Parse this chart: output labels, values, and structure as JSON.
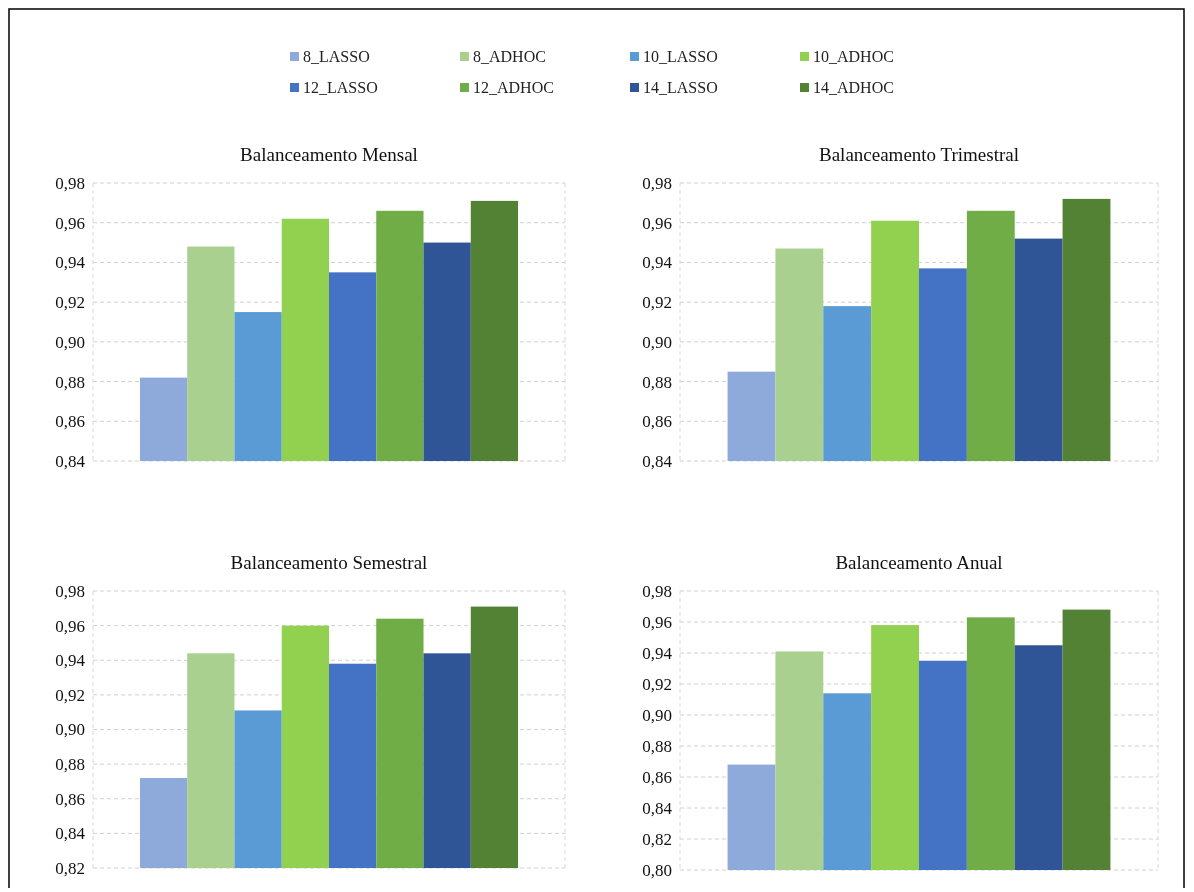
{
  "chart_data": [
    {
      "type": "bar",
      "title": "Balanceamento Mensal",
      "categories": [
        null
      ],
      "legend": "top",
      "grid": "y",
      "ylim": [
        0.84,
        0.98
      ],
      "yticks": [
        {
          "value": 0.84,
          "label": "0,84"
        },
        {
          "value": 0.86,
          "label": "0,86"
        },
        {
          "value": 0.88,
          "label": "0,88"
        },
        {
          "value": 0.9,
          "label": "0,90"
        },
        {
          "value": 0.92,
          "label": "0,92"
        },
        {
          "value": 0.94,
          "label": "0,94"
        },
        {
          "value": 0.96,
          "label": "0,96"
        },
        {
          "value": 0.98,
          "label": "0,98"
        }
      ],
      "series": [
        {
          "name": "8_LASSO",
          "color": "#8eaadb",
          "values": [
            0.882
          ]
        },
        {
          "name": "8_ADHOC",
          "color": "#a9d08e",
          "values": [
            0.948
          ]
        },
        {
          "name": "10_LASSO",
          "color": "#5b9bd5",
          "values": [
            0.915
          ]
        },
        {
          "name": "10_ADHOC",
          "color": "#92d050",
          "values": [
            0.962
          ]
        },
        {
          "name": "12_LASSO",
          "color": "#4472c4",
          "values": [
            0.935
          ]
        },
        {
          "name": "12_ADHOC",
          "color": "#70ad47",
          "values": [
            0.966
          ]
        },
        {
          "name": "14_LASSO",
          "color": "#2f5597",
          "values": [
            0.95
          ]
        },
        {
          "name": "14_ADHOC",
          "color": "#548235",
          "values": [
            0.971
          ]
        }
      ]
    },
    {
      "type": "bar",
      "title": "Balanceamento Trimestral",
      "categories": [
        null
      ],
      "grid": "y",
      "ylim": [
        0.84,
        0.98
      ],
      "yticks": [
        {
          "value": 0.84,
          "label": "0,84"
        },
        {
          "value": 0.86,
          "label": "0,86"
        },
        {
          "value": 0.88,
          "label": "0,88"
        },
        {
          "value": 0.9,
          "label": "0,90"
        },
        {
          "value": 0.92,
          "label": "0,92"
        },
        {
          "value": 0.94,
          "label": "0,94"
        },
        {
          "value": 0.96,
          "label": "0,96"
        },
        {
          "value": 0.98,
          "label": "0,98"
        }
      ],
      "series": [
        {
          "color": "#8eaadb",
          "values": [
            0.885
          ]
        },
        {
          "color": "#a9d08e",
          "values": [
            0.947
          ]
        },
        {
          "color": "#5b9bd5",
          "values": [
            0.918
          ]
        },
        {
          "color": "#92d050",
          "values": [
            0.961
          ]
        },
        {
          "color": "#4472c4",
          "values": [
            0.937
          ]
        },
        {
          "color": "#70ad47",
          "values": [
            0.966
          ]
        },
        {
          "color": "#2f5597",
          "values": [
            0.952
          ]
        },
        {
          "color": "#548235",
          "values": [
            0.972
          ]
        }
      ]
    },
    {
      "type": "bar",
      "title": "Balanceamento Semestral",
      "categories": [
        null
      ],
      "grid": "y",
      "ylim": [
        0.82,
        0.98
      ],
      "yticks": [
        {
          "value": 0.82,
          "label": "0,82"
        },
        {
          "value": 0.84,
          "label": "0,84"
        },
        {
          "value": 0.86,
          "label": "0,86"
        },
        {
          "value": 0.88,
          "label": "0,88"
        },
        {
          "value": 0.9,
          "label": "0,90"
        },
        {
          "value": 0.92,
          "label": "0,92"
        },
        {
          "value": 0.94,
          "label": "0,94"
        },
        {
          "value": 0.96,
          "label": "0,96"
        },
        {
          "value": 0.98,
          "label": "0,98"
        }
      ],
      "series": [
        {
          "color": "#8eaadb",
          "values": [
            0.872
          ]
        },
        {
          "color": "#a9d08e",
          "values": [
            0.944
          ]
        },
        {
          "color": "#5b9bd5",
          "values": [
            0.911
          ]
        },
        {
          "color": "#92d050",
          "values": [
            0.96
          ]
        },
        {
          "color": "#4472c4",
          "values": [
            0.938
          ]
        },
        {
          "color": "#70ad47",
          "values": [
            0.964
          ]
        },
        {
          "color": "#2f5597",
          "values": [
            0.944
          ]
        },
        {
          "color": "#548235",
          "values": [
            0.971
          ]
        }
      ]
    },
    {
      "type": "bar",
      "title": "Balanceamento Anual",
      "categories": [
        null
      ],
      "grid": "y",
      "ylim": [
        0.8,
        0.98
      ],
      "yticks": [
        {
          "value": 0.8,
          "label": "0,80"
        },
        {
          "value": 0.82,
          "label": "0,82"
        },
        {
          "value": 0.84,
          "label": "0,84"
        },
        {
          "value": 0.86,
          "label": "0,86"
        },
        {
          "value": 0.88,
          "label": "0,88"
        },
        {
          "value": 0.9,
          "label": "0,90"
        },
        {
          "value": 0.92,
          "label": "0,92"
        },
        {
          "value": 0.94,
          "label": "0,94"
        },
        {
          "value": 0.96,
          "label": "0,96"
        },
        {
          "value": 0.98,
          "label": "0,98"
        }
      ],
      "series": [
        {
          "color": "#8eaadb",
          "values": [
            0.868
          ]
        },
        {
          "color": "#a9d08e",
          "values": [
            0.941
          ]
        },
        {
          "color": "#5b9bd5",
          "values": [
            0.914
          ]
        },
        {
          "color": "#92d050",
          "values": [
            0.958
          ]
        },
        {
          "color": "#4472c4",
          "values": [
            0.935
          ]
        },
        {
          "color": "#70ad47",
          "values": [
            0.963
          ]
        },
        {
          "color": "#2f5597",
          "values": [
            0.945
          ]
        },
        {
          "color": "#548235",
          "values": [
            0.968
          ]
        }
      ]
    }
  ]
}
